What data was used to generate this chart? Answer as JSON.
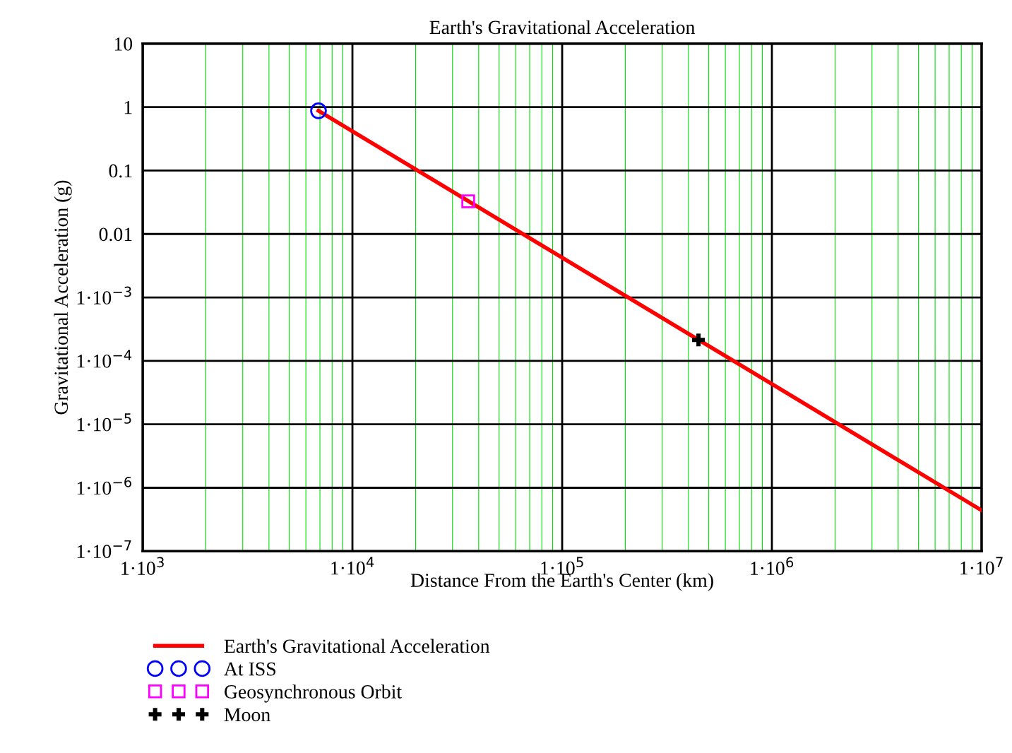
{
  "chart_data": {
    "type": "line",
    "title": "Earth's Gravitational Acceleration",
    "xlabel": "Distance From the Earth's Center (km)",
    "ylabel": "Gravitational Acceleration (g)",
    "log": "xy",
    "grid": true,
    "legend": "bottom",
    "xlim": [
      1000,
      10000000
    ],
    "xticks": [
      {
        "value": 1000,
        "label": "1·10$^{3}$"
      },
      {
        "value": 2000,
        "label": null
      },
      {
        "value": 3000,
        "label": null
      },
      {
        "value": 4000,
        "label": null
      },
      {
        "value": 5000,
        "label": null
      },
      {
        "value": 6000,
        "label": null
      },
      {
        "value": 7000,
        "label": null
      },
      {
        "value": 8000,
        "label": null
      },
      {
        "value": 9000,
        "label": null
      },
      {
        "value": 10000,
        "label": "1·10$^{4}$"
      },
      {
        "value": 20000,
        "label": null
      },
      {
        "value": 30000,
        "label": null
      },
      {
        "value": 40000,
        "label": null
      },
      {
        "value": 50000,
        "label": null
      },
      {
        "value": 60000,
        "label": null
      },
      {
        "value": 70000,
        "label": null
      },
      {
        "value": 80000,
        "label": null
      },
      {
        "value": 90000,
        "label": null
      },
      {
        "value": 100000,
        "label": "1·10$^{5}$"
      },
      {
        "value": 200000,
        "label": null
      },
      {
        "value": 300000,
        "label": null
      },
      {
        "value": 400000,
        "label": null
      },
      {
        "value": 500000,
        "label": null
      },
      {
        "value": 600000,
        "label": null
      },
      {
        "value": 700000,
        "label": null
      },
      {
        "value": 800000,
        "label": null
      },
      {
        "value": 900000,
        "label": null
      },
      {
        "value": 1000000,
        "label": "1·10$^{6}$"
      },
      {
        "value": 2000000,
        "label": null
      },
      {
        "value": 3000000,
        "label": null
      },
      {
        "value": 4000000,
        "label": null
      },
      {
        "value": 5000000,
        "label": null
      },
      {
        "value": 6000000,
        "label": null
      },
      {
        "value": 7000000,
        "label": null
      },
      {
        "value": 8000000,
        "label": null
      },
      {
        "value": 9000000,
        "label": null
      },
      {
        "value": 10000000,
        "label": "1·10$^{7}$"
      }
    ],
    "ylim": [
      1e-07,
      10
    ],
    "yticks": [
      {
        "value": 1e-07,
        "label": "1·10$^{−7}$"
      },
      {
        "value": 1e-06,
        "label": "1·10$^{−6}$"
      },
      {
        "value": 1e-05,
        "label": "1·10$^{−5}$"
      },
      {
        "value": 0.0001,
        "label": "1·10$^{−4}$"
      },
      {
        "value": 0.001,
        "label": "1·10$^{−3}$"
      },
      0.01,
      0.1,
      1,
      10
    ],
    "series": [
      {
        "name": "Earth's Gravitational Acceleration",
        "type": "line",
        "color": "#ff0000",
        "marker": "none",
        "line_style": "solid",
        "x": [
          6890,
          10000000
        ],
        "values": [
          0.875,
          4.4e-07
        ]
      },
      {
        "name": "At ISS",
        "type": "scatter",
        "color": "#0000ff",
        "marker": "circle",
        "x": [
          6890
        ],
        "values": [
          0.875
        ]
      },
      {
        "name": "Geosynchronous Orbit",
        "type": "scatter",
        "color": "#ff00ff",
        "marker": "square",
        "x": [
          35650
        ],
        "values": [
          0.0327
        ]
      },
      {
        "name": "Moon",
        "type": "scatter",
        "color": "#000000",
        "marker": "cross",
        "x": [
          446700
        ],
        "values": [
          0.000214
        ]
      }
    ]
  }
}
